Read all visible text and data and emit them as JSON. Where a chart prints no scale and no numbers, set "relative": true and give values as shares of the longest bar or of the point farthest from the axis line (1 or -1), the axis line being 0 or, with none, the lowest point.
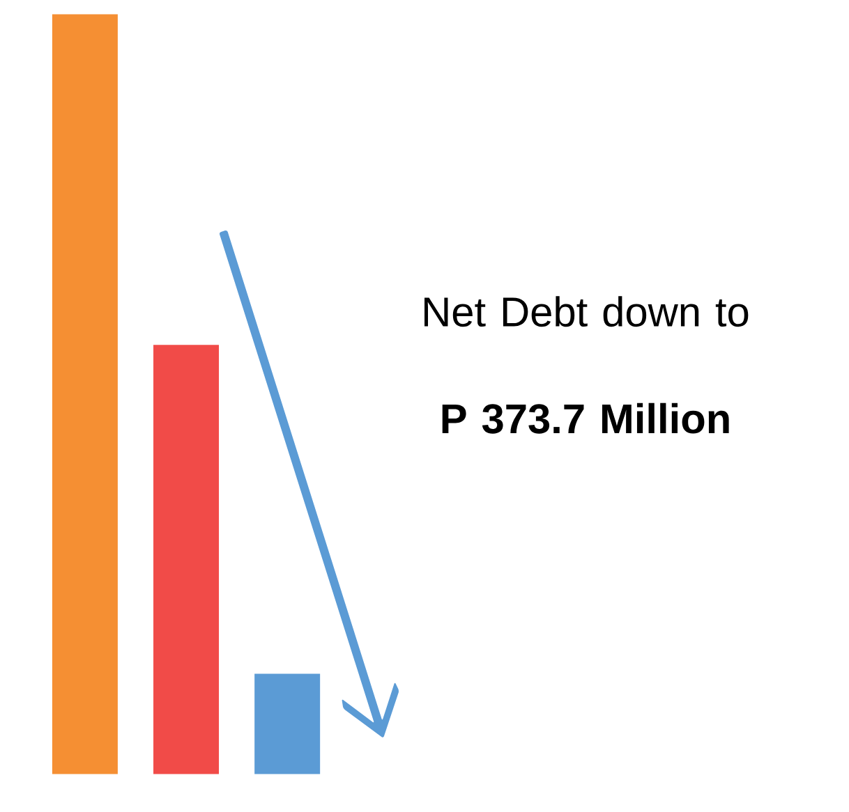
{
  "chart_data": {
    "type": "bar",
    "relative": true,
    "categories": [
      null,
      null,
      null
    ],
    "values": [
      1,
      0.565,
      0.132
    ],
    "colors": [
      "#f58f33",
      "#f14b48",
      "#5b9bd5"
    ],
    "annotations": [
      "Net Debt down to **P 373.7 Million**"
    ]
  }
}
